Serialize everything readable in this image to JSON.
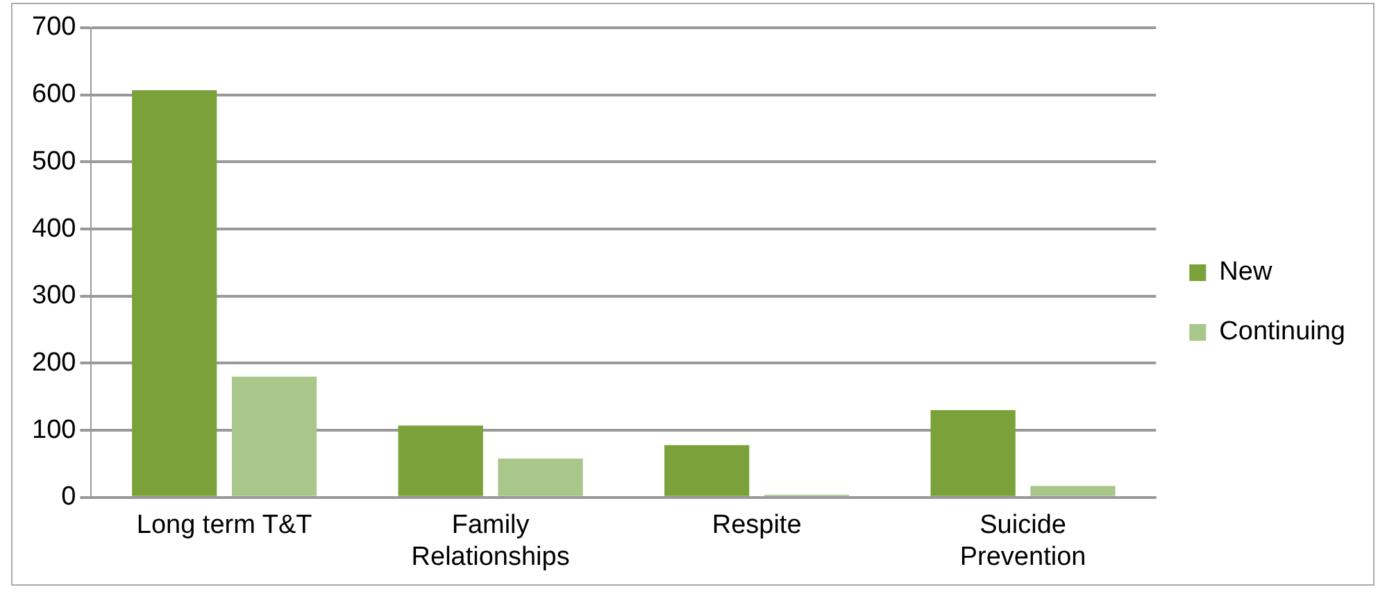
{
  "chart_data": {
    "type": "bar",
    "categories": [
      "Long term T&T",
      "Family Relationships",
      "Respite",
      "Suicide Prevention"
    ],
    "series": [
      {
        "name": "New",
        "color": "#7ba23a",
        "values": [
          607,
          107,
          78,
          130
        ]
      },
      {
        "name": "Continuing",
        "color": "#a9c78a",
        "values": [
          180,
          58,
          4,
          17
        ]
      }
    ],
    "ylim": [
      0,
      700
    ],
    "yticks": [
      0,
      100,
      200,
      300,
      400,
      500,
      600,
      700
    ],
    "grid": "y",
    "legend": "right"
  }
}
